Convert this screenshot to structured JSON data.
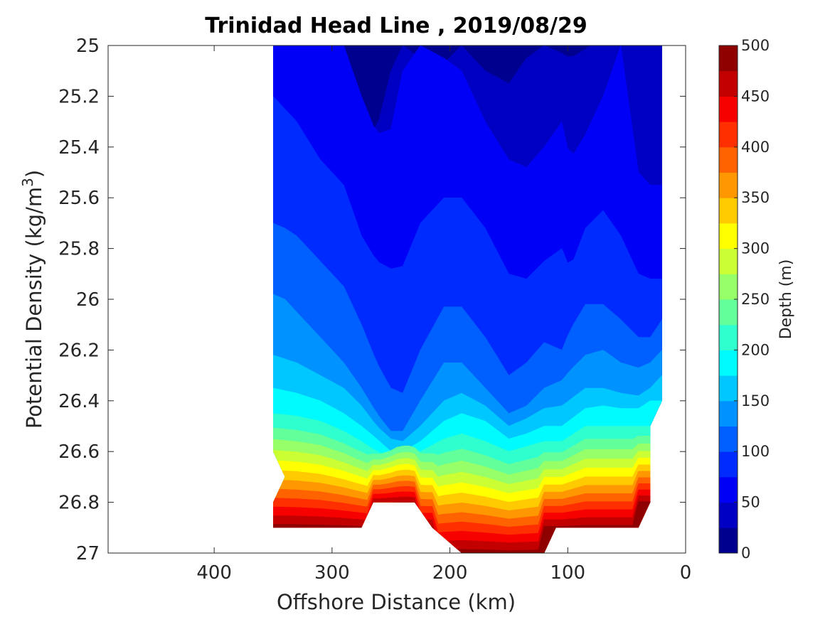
{
  "chart_data": {
    "type": "contourf",
    "title": "Trinidad Head Line , 2019/08/29",
    "xlabel": "Offshore Distance (km)",
    "ylabel": "Potential Density (kg/m",
    "ylabel_superscript": "3",
    "ylabel_suffix": ")",
    "colorbar_label": "Depth (m)",
    "xlim": [
      490,
      0
    ],
    "ylim": [
      25,
      27
    ],
    "y_reversed": true,
    "x_reversed": true,
    "x_ticks": [
      400,
      300,
      200,
      100,
      0
    ],
    "x_tick_labels": [
      "400",
      "300",
      "200",
      "100",
      "0"
    ],
    "y_ticks": [
      25,
      25.2,
      25.4,
      25.6,
      25.8,
      26,
      26.2,
      26.4,
      26.6,
      26.8,
      27
    ],
    "y_tick_labels": [
      "25",
      "25.2",
      "25.4",
      "25.6",
      "25.8",
      "26",
      "26.2",
      "26.4",
      "26.6",
      "26.8",
      "27"
    ],
    "colorbar": {
      "colormap": "jet",
      "min": 0,
      "max": 500,
      "levels": [
        0,
        25,
        50,
        75,
        100,
        125,
        150,
        175,
        200,
        225,
        250,
        275,
        300,
        325,
        350,
        375,
        400,
        425,
        450,
        475,
        500
      ],
      "tick_values": [
        0,
        50,
        100,
        150,
        200,
        250,
        300,
        350,
        400,
        450,
        500
      ],
      "tick_labels": [
        "0",
        "50",
        "100",
        "150",
        "200",
        "250",
        "300",
        "350",
        "400",
        "450",
        "500"
      ],
      "colors": [
        "#00008f",
        "#0000c3",
        "#0000f7",
        "#002bff",
        "#005fff",
        "#0093ff",
        "#00c7ff",
        "#00fbff",
        "#2fffcf",
        "#63ff9b",
        "#97ff67",
        "#cbff33",
        "#ffff00",
        "#ffcb00",
        "#ff9700",
        "#ff6300",
        "#ff2f00",
        "#f70000",
        "#c30000",
        "#8f0000"
      ]
    },
    "data_extent": {
      "x_range_km": [
        350,
        20
      ],
      "note_stations": [
        350,
        340,
        330,
        310,
        290,
        275,
        265,
        255,
        245,
        235,
        220,
        205,
        190,
        175,
        160,
        145,
        130,
        115,
        100,
        85,
        70,
        55,
        40,
        30,
        20
      ]
    },
    "isopycnal_depth_lines": [
      {
        "depth": 25,
        "x": [
          350,
          290,
          270,
          262,
          250,
          240,
          225,
          205,
          190,
          170,
          150,
          135,
          120,
          105,
          98,
          80,
          60,
          45,
          20
        ],
        "y": [
          25.0,
          25.0,
          25.35,
          25.33,
          25.1,
          25.0,
          25.05,
          25.07,
          25.0,
          25.1,
          25.15,
          25.05,
          25.0,
          25.03,
          25.05,
          25.0,
          25.0,
          25.0,
          25.0
        ]
      },
      {
        "depth": 50,
        "x": [
          350,
          330,
          310,
          290,
          275,
          262,
          250,
          240,
          225,
          205,
          190,
          170,
          150,
          135,
          120,
          105,
          98,
          85,
          70,
          55,
          40,
          30,
          20
        ],
        "y": [
          25.0,
          25.0,
          25.0,
          25.0,
          25.2,
          25.35,
          25.33,
          25.1,
          25.0,
          25.05,
          25.1,
          25.3,
          25.45,
          25.48,
          25.4,
          25.3,
          25.45,
          25.35,
          25.2,
          25.0,
          25.5,
          25.55,
          25.55
        ]
      },
      {
        "depth": 75,
        "x": [
          350,
          340,
          330,
          310,
          290,
          275,
          262,
          250,
          240,
          225,
          205,
          190,
          170,
          150,
          135,
          120,
          105,
          98,
          85,
          70,
          55,
          40,
          30,
          20
        ],
        "y": [
          25.2,
          25.25,
          25.3,
          25.45,
          25.55,
          25.75,
          25.85,
          25.88,
          25.87,
          25.7,
          25.6,
          25.6,
          25.72,
          25.9,
          25.92,
          25.85,
          25.8,
          25.88,
          25.72,
          25.65,
          25.75,
          25.9,
          25.92,
          25.92
        ]
      },
      {
        "depth": 100,
        "x": [
          350,
          340,
          330,
          310,
          290,
          275,
          262,
          250,
          240,
          225,
          205,
          190,
          170,
          150,
          135,
          120,
          105,
          98,
          85,
          70,
          55,
          40,
          30,
          20
        ],
        "y": [
          25.7,
          25.72,
          25.75,
          25.85,
          25.95,
          26.1,
          26.25,
          26.35,
          26.37,
          26.2,
          26.03,
          26.03,
          26.15,
          26.3,
          26.25,
          26.17,
          26.2,
          26.12,
          26.02,
          26.02,
          26.08,
          26.15,
          26.15,
          26.08
        ]
      },
      {
        "depth": 125,
        "x": [
          350,
          340,
          330,
          310,
          290,
          275,
          262,
          250,
          240,
          225,
          205,
          190,
          170,
          150,
          135,
          120,
          105,
          98,
          85,
          70,
          55,
          40,
          30,
          20
        ],
        "y": [
          25.98,
          26.0,
          26.05,
          26.15,
          26.25,
          26.35,
          26.45,
          26.52,
          26.52,
          26.4,
          26.25,
          26.25,
          26.35,
          26.45,
          26.42,
          26.35,
          26.32,
          26.28,
          26.22,
          26.2,
          26.25,
          26.27,
          26.25,
          26.2
        ]
      },
      {
        "depth": 150,
        "x": [
          350,
          330,
          310,
          290,
          275,
          262,
          250,
          240,
          225,
          205,
          190,
          170,
          150,
          135,
          120,
          105,
          85,
          70,
          55,
          40,
          30,
          20
        ],
        "y": [
          26.22,
          26.25,
          26.3,
          26.35,
          26.42,
          26.5,
          26.55,
          26.56,
          26.5,
          26.4,
          26.37,
          26.42,
          26.5,
          26.47,
          26.43,
          26.42,
          26.35,
          26.35,
          26.37,
          26.38,
          26.35,
          26.3
        ]
      },
      {
        "depth": 175,
        "x": [
          350,
          330,
          310,
          290,
          275,
          262,
          250,
          240,
          225,
          205,
          190,
          170,
          150,
          135,
          120,
          105,
          85,
          70,
          55,
          40,
          30
        ],
        "y": [
          26.35,
          26.37,
          26.4,
          26.45,
          26.5,
          26.55,
          26.6,
          26.6,
          26.56,
          26.48,
          26.45,
          26.48,
          26.55,
          26.53,
          26.5,
          26.5,
          26.43,
          26.42,
          26.43,
          26.43,
          26.4
        ]
      },
      {
        "depth": 200,
        "x": [
          350,
          330,
          310,
          290,
          275,
          262,
          250,
          240,
          225,
          205,
          190,
          170,
          150,
          135,
          120,
          105,
          85,
          70,
          55,
          40,
          30
        ],
        "y": [
          26.45,
          26.46,
          26.48,
          26.52,
          26.56,
          26.6,
          26.62,
          26.62,
          26.6,
          26.55,
          26.53,
          26.56,
          26.6,
          26.58,
          26.56,
          26.56,
          26.5,
          26.5,
          26.5,
          26.5,
          26.5
        ]
      }
    ]
  }
}
